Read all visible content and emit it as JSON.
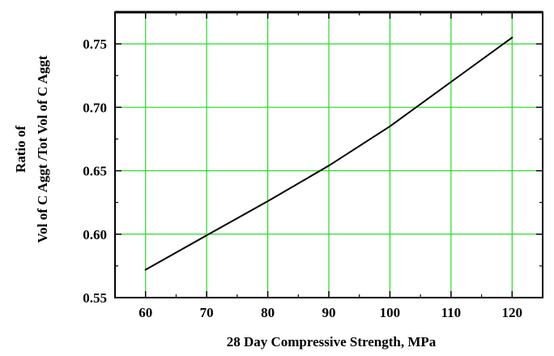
{
  "chart_data": {
    "type": "line",
    "title": "",
    "xlabel": "28 Day Compressive Strength, MPa",
    "ylabel_lines": [
      "Ratio of",
      "Vol of C Aggt /Tot Vol of C Aggt"
    ],
    "xlim": [
      55,
      125
    ],
    "ylim": [
      0.55,
      0.775
    ],
    "xticks": [
      "60",
      "70",
      "80",
      "90",
      "100",
      "110",
      "120"
    ],
    "yticks": [
      "0.55",
      "0.60",
      "0.65",
      "0.70",
      "0.75"
    ],
    "grid": true,
    "grid_color": "#22dd22",
    "line_color": "#000000",
    "series": [
      {
        "x": [
          60,
          70,
          80,
          90,
          100,
          110,
          120
        ],
        "y": [
          0.572,
          0.599,
          0.626,
          0.654,
          0.685,
          0.72,
          0.755
        ]
      }
    ]
  }
}
